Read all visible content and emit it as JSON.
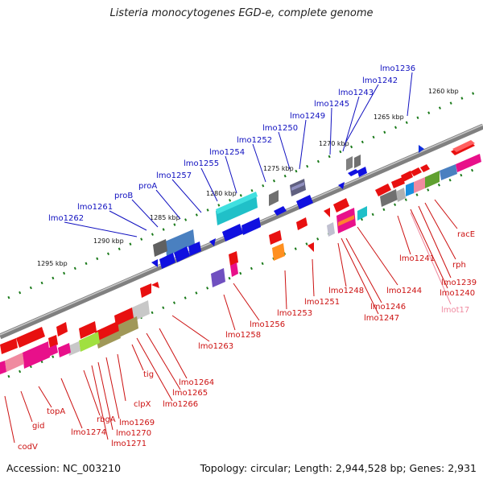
{
  "title": "Listeria monocytogenes EGD-e, complete genome",
  "footer": {
    "accession": "Accession: NC_003210",
    "summary": "Topology: circular; Length: 2,944,528 bp; Genes: 2,931"
  },
  "colors": {
    "backbone": "#707070",
    "tick": "#1a7a1a",
    "upper_label": "#1010c0",
    "lower_label": "#cc1111",
    "pink_label": "#f08aa0",
    "kbp_label": "#111111"
  },
  "kbp_labels": [
    "1260 kbp",
    "1265 kbp",
    "1270 kbp",
    "1275 kbp",
    "1280 kbp",
    "1285 kbp",
    "1290 kbp",
    "1295 kbp"
  ],
  "upper_genes": [
    "lmo1236",
    "lmo1242",
    "lmo1243",
    "lmo1245",
    "lmo1249",
    "lmo1250",
    "lmo1252",
    "lmo1254",
    "lmo1255",
    "lmo1257",
    "proA",
    "proB",
    "lmo1261",
    "lmo1262"
  ],
  "lower_genes": [
    "racE",
    "rph",
    "lmo1239",
    "lmo1240",
    "lmot17",
    "lmo1241",
    "lmo1244",
    "lmo1246",
    "lmo1247",
    "lmo1248",
    "lmo1251",
    "lmo1253",
    "lmo1256",
    "lmo1258",
    "lmo1263",
    "lmo1264",
    "lmo1265",
    "lmo1266",
    "tig",
    "clpX",
    "lmo1269",
    "lmo1270",
    "lmo1271",
    "rbgA",
    "lmo1274",
    "topA",
    "gid",
    "codV"
  ]
}
